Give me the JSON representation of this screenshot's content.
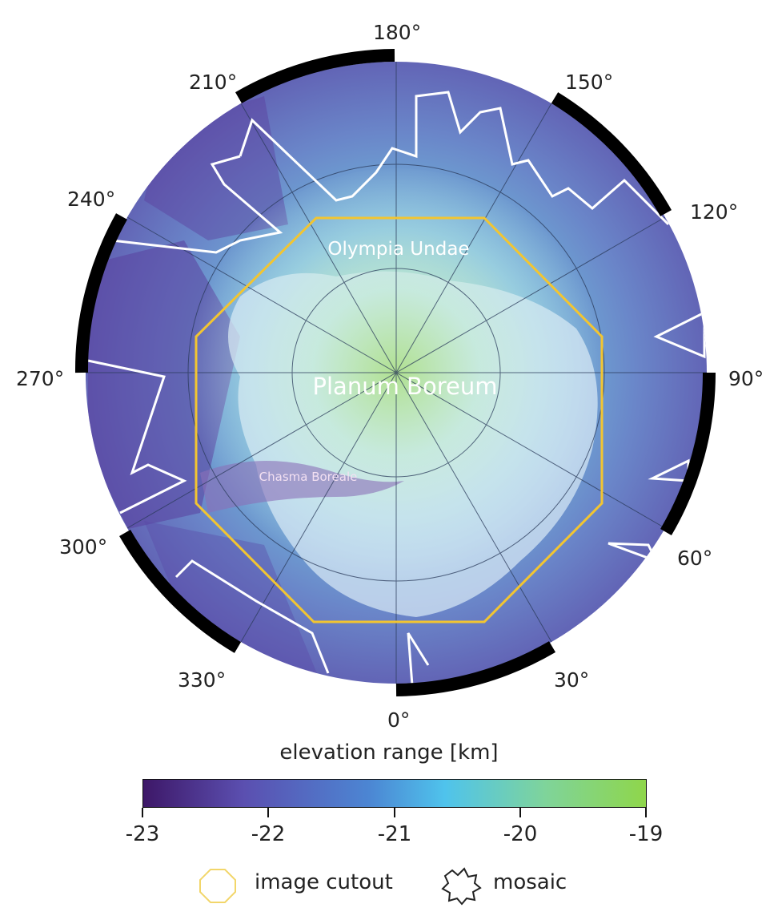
{
  "map": {
    "labels": {
      "planum_boreum": "Planum Boreum",
      "olympia_undae": "Olympia Undae",
      "chasma_boreale": "Chasma Boreale"
    },
    "longitude_labels": [
      "0°",
      "30°",
      "60°",
      "90°",
      "120°",
      "150°",
      "180°",
      "210°",
      "240°",
      "270°",
      "300°",
      "330°"
    ],
    "colors": {
      "cutout_outline": "#f2c531",
      "mosaic_outline": "#ffffff",
      "coverage_band": "#000000"
    }
  },
  "colorbar": {
    "title": "elevation range [km]",
    "min": -23,
    "max": -19,
    "ticks": [
      "-23",
      "-22",
      "-21",
      "-20",
      "-19"
    ],
    "colors": [
      "#3d1767",
      "#5b4fb0",
      "#4c86d3",
      "#4fc3ec",
      "#7fd49a",
      "#8fd64a"
    ]
  },
  "legend": {
    "cutout_label": "image cutout",
    "mosaic_label": "mosaic"
  }
}
